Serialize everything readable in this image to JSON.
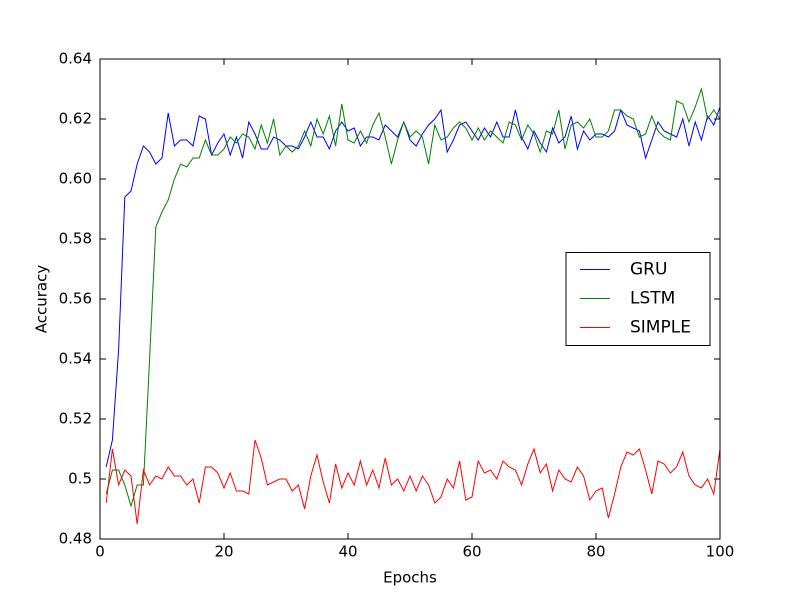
{
  "chart_data": {
    "type": "line",
    "xlabel": "Epochs",
    "ylabel": "Accuracy",
    "x": [
      1,
      2,
      3,
      4,
      5,
      6,
      7,
      8,
      9,
      10,
      11,
      12,
      13,
      14,
      15,
      16,
      17,
      18,
      19,
      20,
      21,
      22,
      23,
      24,
      25,
      26,
      27,
      28,
      29,
      30,
      31,
      32,
      33,
      34,
      35,
      36,
      37,
      38,
      39,
      40,
      41,
      42,
      43,
      44,
      45,
      46,
      47,
      48,
      49,
      50,
      51,
      52,
      53,
      54,
      55,
      56,
      57,
      58,
      59,
      60,
      61,
      62,
      63,
      64,
      65,
      66,
      67,
      68,
      69,
      70,
      71,
      72,
      73,
      74,
      75,
      76,
      77,
      78,
      79,
      80,
      81,
      82,
      83,
      84,
      85,
      86,
      87,
      88,
      89,
      90,
      91,
      92,
      93,
      94,
      95,
      96,
      97,
      98,
      99,
      100
    ],
    "series": [
      {
        "name": "GRU",
        "color": "#0000ff",
        "values": [
          0.504,
          0.513,
          0.543,
          0.594,
          0.596,
          0.605,
          0.611,
          0.609,
          0.605,
          0.607,
          0.622,
          0.611,
          0.613,
          0.613,
          0.611,
          0.621,
          0.62,
          0.608,
          0.612,
          0.615,
          0.608,
          0.614,
          0.607,
          0.619,
          0.615,
          0.61,
          0.61,
          0.614,
          0.613,
          0.611,
          0.611,
          0.61,
          0.614,
          0.619,
          0.614,
          0.614,
          0.61,
          0.616,
          0.619,
          0.616,
          0.617,
          0.611,
          0.614,
          0.614,
          0.613,
          0.618,
          0.616,
          0.614,
          0.619,
          0.613,
          0.611,
          0.615,
          0.618,
          0.62,
          0.623,
          0.609,
          0.613,
          0.618,
          0.619,
          0.616,
          0.613,
          0.617,
          0.614,
          0.619,
          0.614,
          0.614,
          0.623,
          0.614,
          0.61,
          0.616,
          0.612,
          0.609,
          0.617,
          0.612,
          0.614,
          0.621,
          0.61,
          0.616,
          0.613,
          0.615,
          0.615,
          0.614,
          0.616,
          0.623,
          0.618,
          0.617,
          0.616,
          0.607,
          0.613,
          0.619,
          0.616,
          0.615,
          0.614,
          0.62,
          0.611,
          0.619,
          0.613,
          0.621,
          0.618,
          0.624
        ]
      },
      {
        "name": "LSTM",
        "color": "#008000",
        "values": [
          0.495,
          0.503,
          0.503,
          0.498,
          0.491,
          0.498,
          0.498,
          0.54,
          0.584,
          0.589,
          0.593,
          0.6,
          0.605,
          0.604,
          0.607,
          0.607,
          0.613,
          0.608,
          0.608,
          0.61,
          0.614,
          0.612,
          0.615,
          0.614,
          0.61,
          0.618,
          0.612,
          0.62,
          0.608,
          0.611,
          0.609,
          0.611,
          0.616,
          0.611,
          0.62,
          0.615,
          0.621,
          0.611,
          0.625,
          0.613,
          0.612,
          0.616,
          0.612,
          0.618,
          0.622,
          0.614,
          0.605,
          0.613,
          0.619,
          0.614,
          0.616,
          0.614,
          0.605,
          0.618,
          0.613,
          0.614,
          0.617,
          0.619,
          0.617,
          0.613,
          0.617,
          0.613,
          0.616,
          0.614,
          0.612,
          0.619,
          0.618,
          0.613,
          0.618,
          0.615,
          0.609,
          0.616,
          0.615,
          0.623,
          0.61,
          0.618,
          0.619,
          0.617,
          0.62,
          0.614,
          0.614,
          0.616,
          0.623,
          0.623,
          0.621,
          0.62,
          0.614,
          0.615,
          0.621,
          0.616,
          0.614,
          0.613,
          0.626,
          0.625,
          0.619,
          0.624,
          0.63,
          0.62,
          0.623,
          0.62
        ]
      },
      {
        "name": "SIMPLE",
        "color": "#ff0000",
        "values": [
          0.492,
          0.51,
          0.498,
          0.503,
          0.501,
          0.485,
          0.503,
          0.498,
          0.501,
          0.5,
          0.504,
          0.501,
          0.501,
          0.498,
          0.5,
          0.492,
          0.504,
          0.504,
          0.502,
          0.497,
          0.502,
          0.496,
          0.496,
          0.495,
          0.513,
          0.507,
          0.498,
          0.499,
          0.5,
          0.5,
          0.496,
          0.498,
          0.49,
          0.501,
          0.508,
          0.499,
          0.492,
          0.505,
          0.497,
          0.502,
          0.498,
          0.506,
          0.498,
          0.503,
          0.497,
          0.507,
          0.498,
          0.5,
          0.496,
          0.501,
          0.496,
          0.501,
          0.498,
          0.492,
          0.494,
          0.5,
          0.497,
          0.506,
          0.493,
          0.494,
          0.506,
          0.502,
          0.503,
          0.5,
          0.506,
          0.504,
          0.503,
          0.498,
          0.505,
          0.51,
          0.502,
          0.505,
          0.496,
          0.503,
          0.5,
          0.499,
          0.504,
          0.501,
          0.493,
          0.496,
          0.497,
          0.487,
          0.495,
          0.504,
          0.509,
          0.508,
          0.51,
          0.503,
          0.495,
          0.506,
          0.505,
          0.502,
          0.504,
          0.509,
          0.501,
          0.498,
          0.497,
          0.5,
          0.495,
          0.51
        ]
      }
    ],
    "xlim": [
      0,
      100
    ],
    "xticks": [
      0,
      20,
      40,
      60,
      80,
      100
    ],
    "ylim": [
      0.48,
      0.64
    ],
    "yticks": [
      0.48,
      0.5,
      0.52,
      0.54,
      0.56,
      0.58,
      {
        "value": 0.6,
        "label": "0.60"
      },
      0.62,
      0.64
    ],
    "grid": false,
    "legend": "center right"
  }
}
